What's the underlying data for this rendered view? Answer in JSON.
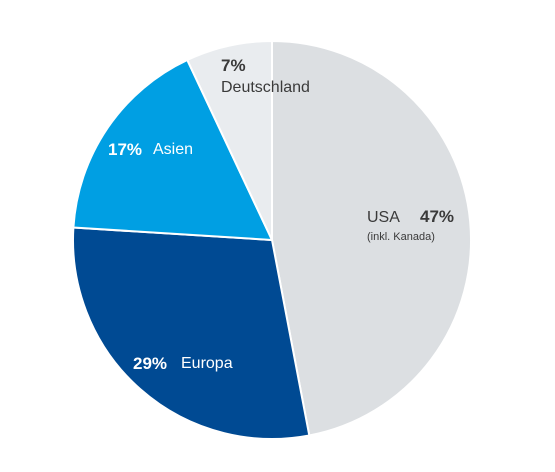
{
  "chart_data": {
    "type": "pie",
    "slices": [
      {
        "label": "USA",
        "note": "(inkl. Kanada)",
        "percent_label": "47%",
        "value": 47,
        "color": "#dcdfe2",
        "text_color": "#3a3a3a"
      },
      {
        "label": "Europa",
        "percent_label": "29%",
        "value": 29,
        "color": "#004a93",
        "text_color": "#ffffff"
      },
      {
        "label": "Asien",
        "percent_label": "17%",
        "value": 17,
        "color": "#009fe3",
        "text_color": "#ffffff"
      },
      {
        "label": "Deutschland",
        "percent_label": "7%",
        "value": 7,
        "color": "#e9ecef",
        "text_color": "#3a3a3a"
      }
    ],
    "start": "12 o'clock",
    "direction": "clockwise",
    "legend": "none"
  }
}
